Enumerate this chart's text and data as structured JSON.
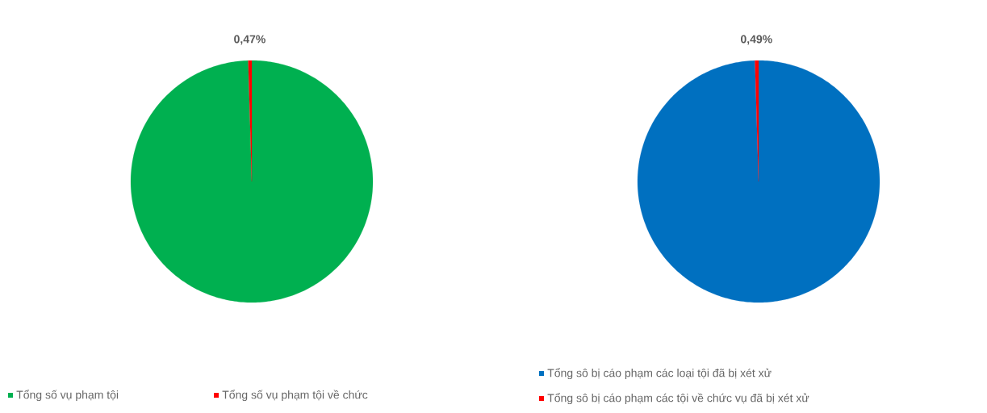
{
  "chart_data": [
    {
      "type": "pie",
      "categories": [
        "Tổng số vụ phạm tội",
        "Tổng số vụ phạm tội về chức"
      ],
      "values": [
        99.53,
        0.47
      ],
      "colors": [
        "#00b050",
        "#ff0000"
      ],
      "value_labels": [
        null,
        "0,47%"
      ],
      "legend": "bottom"
    },
    {
      "type": "pie",
      "categories": [
        "Tổng sô bị cáo phạm các loại tội đã bị xét xử",
        "Tổng sô bị cáo phạm các tội về chức vụ đã bị xét xử"
      ],
      "values": [
        99.51,
        0.49
      ],
      "colors": [
        "#0070c0",
        "#ff0000"
      ],
      "value_labels": [
        null,
        "0,49%"
      ],
      "legend": "bottom"
    }
  ]
}
